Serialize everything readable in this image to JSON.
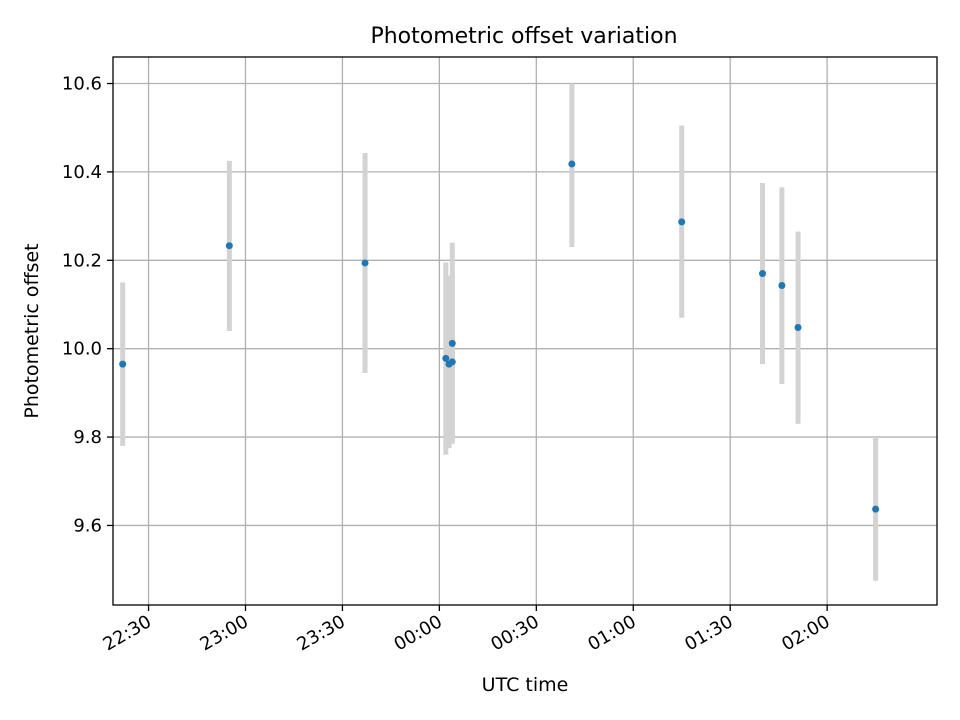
{
  "chart_data": {
    "type": "scatter",
    "title": "Photometric offset variation",
    "xlabel": "UTC time",
    "ylabel": "Photometric offset",
    "x_axis_type": "time",
    "xlim": [
      "22:19",
      "02:34"
    ],
    "ylim": [
      9.42,
      10.66
    ],
    "x_ticks": [
      "22:30",
      "23:00",
      "23:30",
      "00:00",
      "00:30",
      "01:00",
      "01:30",
      "02:00"
    ],
    "y_ticks": [
      "9.6",
      "9.8",
      "10.0",
      "10.2",
      "10.4",
      "10.6"
    ],
    "y_tick_values": [
      9.6,
      9.8,
      10.0,
      10.2,
      10.4,
      10.6
    ],
    "grid": true,
    "marker_color": "#1f77b4",
    "errorbar_color": "#d3d3d3",
    "points": [
      {
        "x": "22:22",
        "y": 9.965,
        "yerr_low": 9.78,
        "yerr_high": 10.15
      },
      {
        "x": "22:55",
        "y": 10.233,
        "yerr_low": 10.04,
        "yerr_high": 10.425
      },
      {
        "x": "23:37",
        "y": 10.194,
        "yerr_low": 9.945,
        "yerr_high": 10.443
      },
      {
        "x": "00:02",
        "y": 9.978,
        "yerr_low": 9.76,
        "yerr_high": 10.195
      },
      {
        "x": "00:03",
        "y": 9.965,
        "yerr_low": 9.775,
        "yerr_high": 10.165
      },
      {
        "x": "00:04",
        "y": 9.97,
        "yerr_low": 9.79,
        "yerr_high": 10.17
      },
      {
        "x": "00:04",
        "y": 10.012,
        "yerr_low": 9.785,
        "yerr_high": 10.24
      },
      {
        "x": "00:41",
        "y": 10.418,
        "yerr_low": 10.23,
        "yerr_high": 10.6
      },
      {
        "x": "01:15",
        "y": 10.287,
        "yerr_low": 10.07,
        "yerr_high": 10.505
      },
      {
        "x": "01:40",
        "y": 10.17,
        "yerr_low": 9.965,
        "yerr_high": 10.375
      },
      {
        "x": "01:46",
        "y": 10.143,
        "yerr_low": 9.92,
        "yerr_high": 10.365
      },
      {
        "x": "01:51",
        "y": 10.048,
        "yerr_low": 9.83,
        "yerr_high": 10.265
      },
      {
        "x": "02:15",
        "y": 9.637,
        "yerr_low": 9.475,
        "yerr_high": 9.8
      }
    ]
  }
}
